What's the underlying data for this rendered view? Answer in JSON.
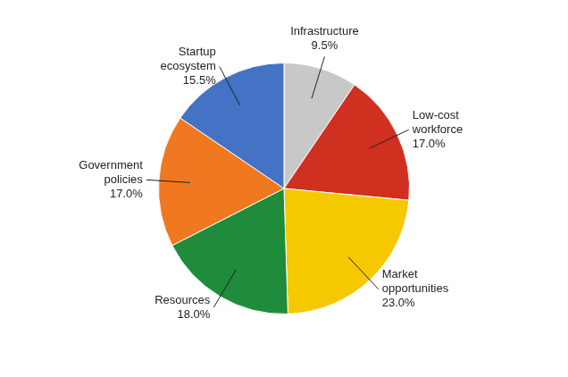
{
  "chart_data": {
    "type": "pie",
    "categories": [
      "Infrastructure",
      "Low-cost\nworkforce",
      "Market\nopportunities",
      "Resources",
      "Government\npolicies",
      "Startup\necosystem"
    ],
    "values": [
      9.5,
      17.0,
      23.0,
      18.0,
      17.0,
      15.5
    ],
    "value_labels": [
      "9.5%",
      "17.0%",
      "23.0%",
      "18.0%",
      "17.0%",
      "15.5%"
    ],
    "data_labels": true,
    "colors": [
      "#c8c8c8",
      "#d03020",
      "#f5c800",
      "#1e8c3a",
      "#f07820",
      "#4472c4"
    ]
  }
}
